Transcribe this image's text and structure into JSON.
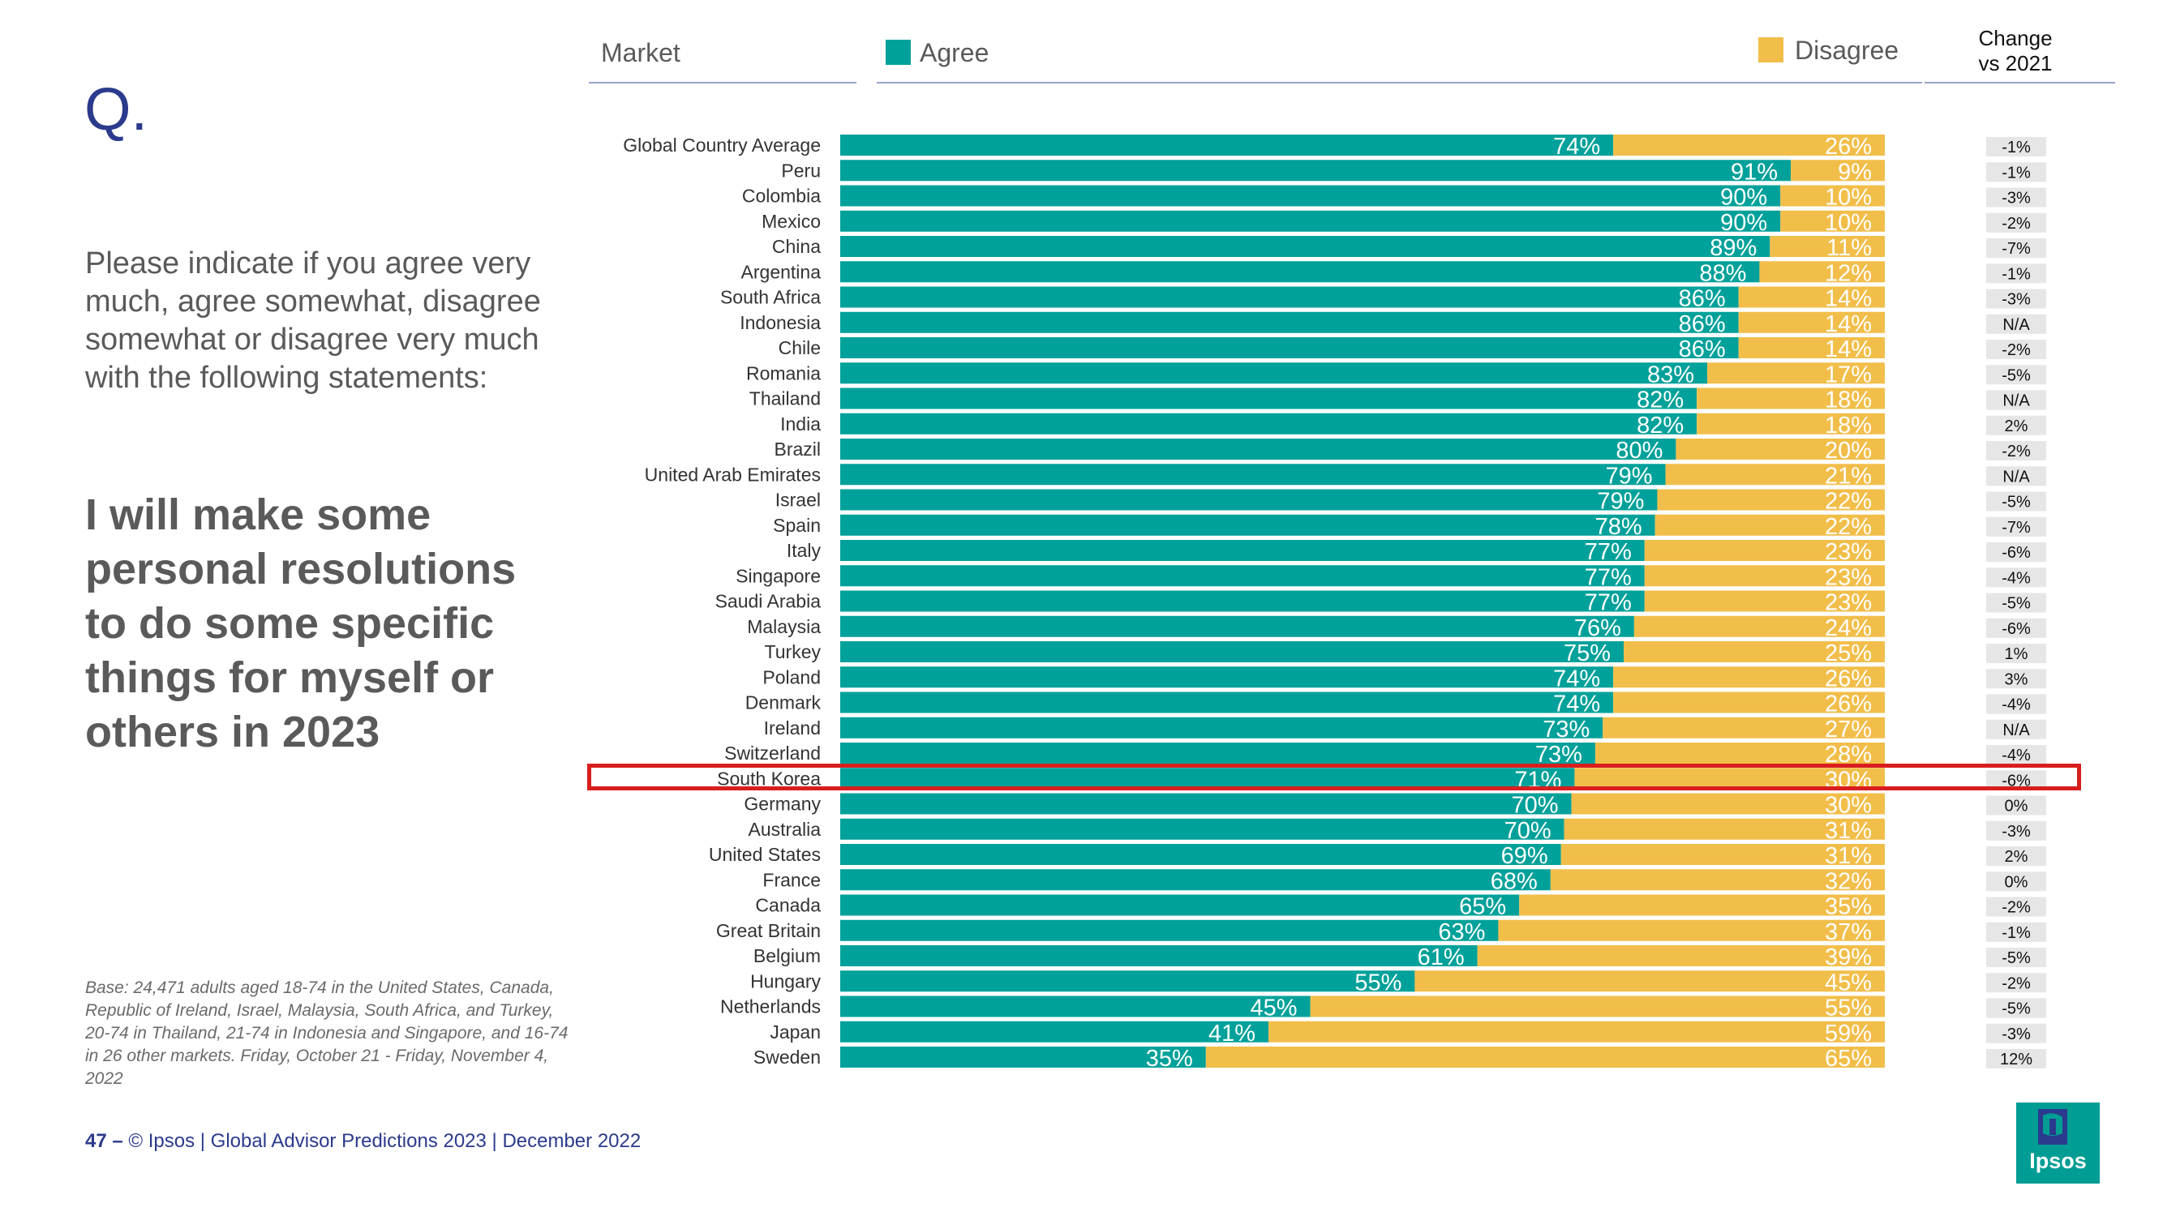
{
  "slide": {
    "q_mark": "Q.",
    "question": "Please indicate if you agree very much, agree somewhat, disagree somewhat or disagree very much with the following statements:",
    "statement": "I will make some personal resolutions to do some specific things for myself or others in 2023",
    "base_note": "Base: 24,471 adults aged 18-74 in the United States, Canada, Republic of Ireland, Israel, Malaysia, South Africa, and Turkey, 20-74 in Thailand, 21-74 in Indonesia and Singapore, and 16-74 in 26 other markets. Friday, October 21 - Friday, November 4, 2022",
    "footer_page": "47 –",
    "footer_text": "© Ipsos | Global Advisor Predictions 2023 | December 2022",
    "logo_text": "Ipsos",
    "highlighted_market": "South Korea"
  },
  "headers": {
    "market": "Market",
    "agree": "Agree",
    "disagree": "Disagree",
    "change_line1": "Change",
    "change_line2": "vs 2021"
  },
  "colors": {
    "agree": "#00a19a",
    "disagree": "#f2be4a",
    "title_blue": "#2b3a8c",
    "highlight": "#d81e1e",
    "change_bg": "#e6e6e6"
  },
  "chart_data": {
    "type": "bar",
    "orientation": "horizontal",
    "stacked": true,
    "title": "I will make some personal resolutions to do some specific things for myself or others in 2023",
    "xlim": [
      0,
      100
    ],
    "legend": "top",
    "categories": [
      "Global Country Average",
      "Peru",
      "Colombia",
      "Mexico",
      "China",
      "Argentina",
      "South Africa",
      "Indonesia",
      "Chile",
      "Romania",
      "Thailand",
      "India",
      "Brazil",
      "United Arab Emirates",
      "Israel",
      "Spain",
      "Italy",
      "Singapore",
      "Saudi Arabia",
      "Malaysia",
      "Turkey",
      "Poland",
      "Denmark",
      "Ireland",
      "Switzerland",
      "South Korea",
      "Germany",
      "Australia",
      "United States",
      "France",
      "Canada",
      "Great Britain",
      "Belgium",
      "Hungary",
      "Netherlands",
      "Japan",
      "Sweden"
    ],
    "series": [
      {
        "name": "Agree",
        "values": [
          74,
          91,
          90,
          90,
          89,
          88,
          86,
          86,
          86,
          83,
          82,
          82,
          80,
          79,
          79,
          78,
          77,
          77,
          77,
          76,
          75,
          74,
          74,
          73,
          73,
          71,
          70,
          70,
          69,
          68,
          65,
          63,
          61,
          55,
          45,
          41,
          35
        ]
      },
      {
        "name": "Disagree",
        "values": [
          26,
          9,
          10,
          10,
          11,
          12,
          14,
          14,
          14,
          17,
          18,
          18,
          20,
          21,
          22,
          22,
          23,
          23,
          23,
          24,
          25,
          26,
          26,
          27,
          28,
          30,
          30,
          31,
          31,
          32,
          35,
          37,
          39,
          45,
          55,
          59,
          65
        ]
      }
    ],
    "change_vs_2021": [
      "-1%",
      "-1%",
      "-3%",
      "-2%",
      "-7%",
      "-1%",
      "-3%",
      "N/A",
      "-2%",
      "-5%",
      "N/A",
      "2%",
      "-2%",
      "N/A",
      "-5%",
      "-7%",
      "-6%",
      "-4%",
      "-5%",
      "-6%",
      "1%",
      "3%",
      "-4%",
      "N/A",
      "-4%",
      "-6%",
      "0%",
      "-3%",
      "2%",
      "0%",
      "-2%",
      "-1%",
      "-5%",
      "-2%",
      "-5%",
      "-3%",
      "12%"
    ]
  }
}
